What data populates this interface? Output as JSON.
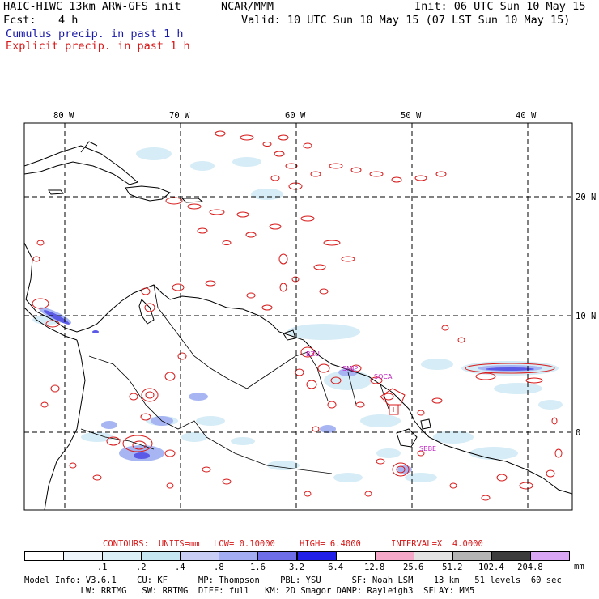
{
  "header": {
    "title": "HAIC-HIWC 13km ARW-GFS init",
    "org": "NCAR/MMM",
    "init": "Init: 06 UTC Sun 10 May 15",
    "fcst_label": "Fcst:",
    "fcst_value": "4 h",
    "valid": "Valid: 10 UTC Sun 10 May 15 (07 LST Sun 10 May 15)",
    "legend_cumulus": "Cumulus precip. in past 1 h",
    "legend_explicit": "Explicit precip. in past 1 h"
  },
  "colors": {
    "cumulus": "#1a1aa8",
    "explicit": "#d81818",
    "shade_light": "#d6ecf6",
    "shade_med": "#a7b6f2",
    "shade_dark": "#5a5ae6"
  },
  "map": {
    "longitude_labels": [
      "80 W",
      "70 W",
      "60 W",
      "50 W",
      "40 W"
    ],
    "latitude_labels": [
      "20 N",
      "10 N",
      "0"
    ],
    "stations": [
      "BZU",
      "SMJP",
      "SOCA",
      "SBBE"
    ]
  },
  "contours": {
    "label": "CONTOURS:",
    "units": "UNITS=mm",
    "low": "LOW= 0.10000",
    "high": "HIGH= 6.4000",
    "interval": "INTERVAL=X  4.0000"
  },
  "colorbar": {
    "unit": "mm",
    "colors": [
      "#ffffff",
      "#eef6fb",
      "#dbeff7",
      "#c6e6f2",
      "#c7cdf4",
      "#a3adf1",
      "#6e6ee9",
      "#2020e8",
      "#ffffff",
      "#f5a8c8",
      "#e3e3e3",
      "#b4b4b4",
      "#3c3c3c",
      "#d8a6f4"
    ],
    "ticks": [
      ".1",
      ".2",
      ".4",
      ".8",
      "1.6",
      "3.2",
      "6.4",
      "12.8",
      "25.6",
      "51.2",
      "102.4",
      "204.8"
    ]
  },
  "footer": {
    "line1": "Model Info: V3.6.1    CU: KF      MP: Thompson    PBL: YSU      SF: Noah LSM    13 km   51 levels  60 sec",
    "line2": "           LW: RRTMG   SW: RRTMG  DIFF: full   KM: 2D Smagor DAMP: Rayleigh3  SFLAY: MM5"
  }
}
